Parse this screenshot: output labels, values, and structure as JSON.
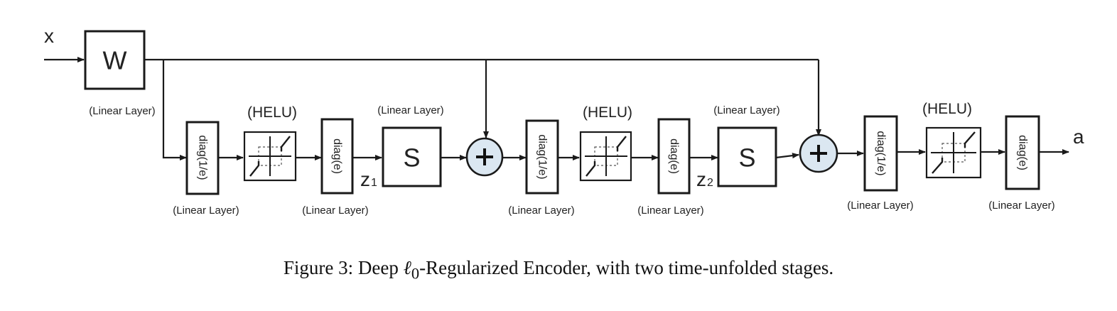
{
  "input_label": "x",
  "output_label": "a",
  "w_block": {
    "symbol": "W",
    "layer_label": "(Linear Layer)"
  },
  "stages": [
    {
      "diag_in": {
        "text": "diag(1/e)",
        "layer_label": "(Linear Layer)"
      },
      "helu_label": "(HELU)",
      "diag_out": {
        "text": "diag(e)",
        "layer_label": "(Linear Layer)"
      },
      "z_label": {
        "base": "z",
        "sub": "1"
      },
      "s_block": {
        "symbol": "S",
        "layer_label": "(Linear Layer)"
      },
      "sum_symbol": "+"
    },
    {
      "diag_in": {
        "text": "diag(1/e)",
        "layer_label": "(Linear Layer)"
      },
      "helu_label": "(HELU)",
      "diag_out": {
        "text": "diag(e)",
        "layer_label": "(Linear Layer)"
      },
      "z_label": {
        "base": "z",
        "sub": "2"
      },
      "s_block": {
        "symbol": "S",
        "layer_label": "(Linear Layer)"
      },
      "sum_symbol": "+"
    }
  ],
  "final_stage": {
    "diag_in": {
      "text": "diag(1/e)",
      "layer_label": "(Linear Layer)"
    },
    "helu_label": "(HELU)",
    "diag_out": {
      "text": "diag(e)",
      "layer_label": "(Linear Layer)"
    }
  },
  "caption": {
    "prefix": "Figure 3: Deep ",
    "ell": "ℓ",
    "ell_sub": "0",
    "suffix": "-Regularized Encoder, with two time-unfolded stages."
  }
}
